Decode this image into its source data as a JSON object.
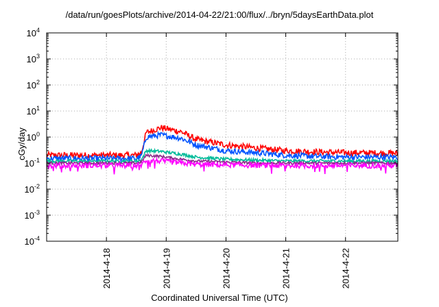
{
  "chart_data": {
    "type": "line",
    "title": "/data/run/goesPlots/archive/2014-04-22/21:00/flux/../bryn/5daysEarthData.plot",
    "xlabel": "Coordinated Universal Time (UTC)",
    "ylabel": "cGy/day",
    "yscale": "log",
    "ylim": [
      0.0001,
      10000
    ],
    "yticks": [
      {
        "value": 0.0001,
        "base": "10",
        "exp": "-4"
      },
      {
        "value": 0.001,
        "base": "10",
        "exp": "-3"
      },
      {
        "value": 0.01,
        "base": "10",
        "exp": "-2"
      },
      {
        "value": 0.1,
        "base": "10",
        "exp": "-1"
      },
      {
        "value": 1,
        "base": "10",
        "exp": "0"
      },
      {
        "value": 10,
        "base": "10",
        "exp": "1"
      },
      {
        "value": 100,
        "base": "10",
        "exp": "2"
      },
      {
        "value": 1000,
        "base": "10",
        "exp": "3"
      },
      {
        "value": 10000,
        "base": "10",
        "exp": "4"
      }
    ],
    "xlim": [
      "2014-04-17 00:00",
      "2014-04-22 21:00"
    ],
    "xticks": [
      "2014-4-18",
      "2014-4-19",
      "2014-4-20",
      "2014-4-21",
      "2014-4-22"
    ],
    "grid": true,
    "series": [
      {
        "color": "#ff0000",
        "x": [
          "2014-04-17 00:00",
          "2014-04-18 12:00",
          "2014-04-18 14:00",
          "2014-04-18 16:00",
          "2014-04-18 22:00",
          "2014-04-19 06:00",
          "2014-04-19 12:00",
          "2014-04-20 00:00",
          "2014-04-20 12:00",
          "2014-04-21 00:00",
          "2014-04-21 12:00",
          "2014-04-22 00:00",
          "2014-04-22 21:00"
        ],
        "values": [
          0.2,
          0.2,
          0.25,
          1.5,
          2.3,
          1.6,
          0.8,
          0.5,
          0.38,
          0.3,
          0.27,
          0.25,
          0.24
        ]
      },
      {
        "color": "#0055ff",
        "x": [
          "2014-04-17 00:00",
          "2014-04-18 12:00",
          "2014-04-18 14:00",
          "2014-04-18 16:00",
          "2014-04-18 22:00",
          "2014-04-19 06:00",
          "2014-04-19 12:00",
          "2014-04-20 00:00",
          "2014-04-20 12:00",
          "2014-04-21 00:00",
          "2014-04-21 12:00",
          "2014-04-22 00:00",
          "2014-04-22 21:00"
        ],
        "values": [
          0.15,
          0.15,
          0.18,
          1.0,
          1.2,
          0.9,
          0.5,
          0.3,
          0.25,
          0.2,
          0.18,
          0.17,
          0.17
        ]
      },
      {
        "color": "#00bb99",
        "x": [
          "2014-04-17 00:00",
          "2014-04-18 12:00",
          "2014-04-18 14:00",
          "2014-04-18 16:00",
          "2014-04-18 22:00",
          "2014-04-19 06:00",
          "2014-04-19 12:00",
          "2014-04-20 00:00",
          "2014-04-20 12:00",
          "2014-04-21 00:00",
          "2014-04-21 12:00",
          "2014-04-22 00:00",
          "2014-04-22 21:00"
        ],
        "values": [
          0.12,
          0.12,
          0.13,
          0.3,
          0.28,
          0.22,
          0.17,
          0.14,
          0.13,
          0.12,
          0.12,
          0.12,
          0.12
        ]
      },
      {
        "color": "#8a2a8a",
        "x": [
          "2014-04-17 00:00",
          "2014-04-18 12:00",
          "2014-04-18 14:00",
          "2014-04-18 16:00",
          "2014-04-18 22:00",
          "2014-04-19 06:00",
          "2014-04-19 12:00",
          "2014-04-20 00:00",
          "2014-04-20 12:00",
          "2014-04-21 00:00",
          "2014-04-21 12:00",
          "2014-04-22 00:00",
          "2014-04-22 21:00"
        ],
        "values": [
          0.1,
          0.1,
          0.11,
          0.2,
          0.18,
          0.14,
          0.12,
          0.11,
          0.1,
          0.1,
          0.1,
          0.1,
          0.1
        ]
      },
      {
        "color": "#ff00ff",
        "x": [
          "2014-04-17 00:00",
          "2014-04-18 12:00",
          "2014-04-18 14:00",
          "2014-04-18 16:00",
          "2014-04-18 22:00",
          "2014-04-19 06:00",
          "2014-04-19 12:00",
          "2014-04-20 00:00",
          "2014-04-20 12:00",
          "2014-04-21 00:00",
          "2014-04-21 12:00",
          "2014-04-22 00:00",
          "2014-04-22 21:00"
        ],
        "values": [
          0.08,
          0.08,
          0.085,
          0.13,
          0.12,
          0.1,
          0.09,
          0.085,
          0.082,
          0.08,
          0.08,
          0.08,
          0.08
        ]
      }
    ]
  }
}
